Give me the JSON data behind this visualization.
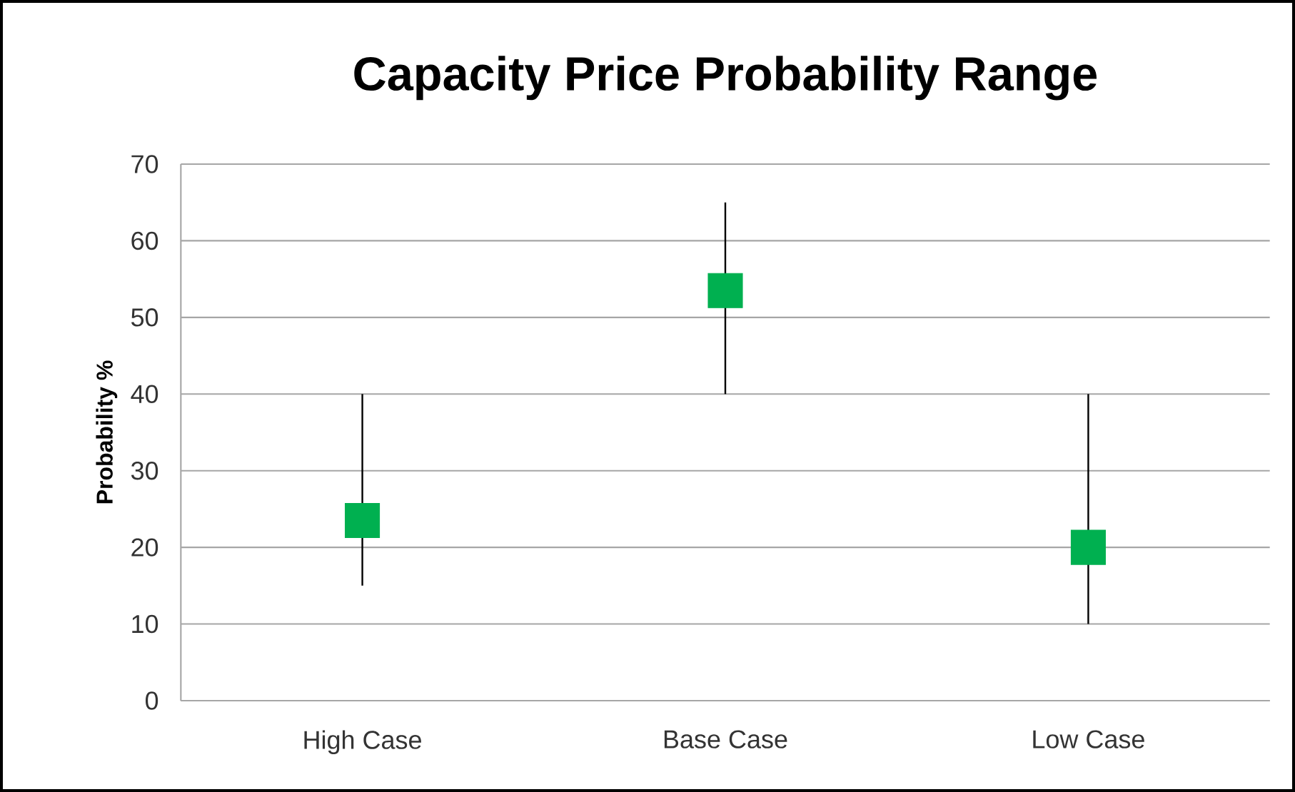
{
  "chart_data": {
    "type": "scatter",
    "title": "Capacity Price Probability Range",
    "ylabel": "Probability %",
    "categories": [
      "High Case",
      "Base Case",
      "Low Case"
    ],
    "values": [
      23.5,
      53.5,
      20
    ],
    "errors": [
      [
        15,
        40
      ],
      [
        40,
        65
      ],
      [
        10,
        40
      ]
    ],
    "color": "#00b050",
    "marker": "square",
    "ylim": [
      0,
      70
    ],
    "yticks": [
      0,
      10,
      20,
      30,
      40,
      50,
      60,
      70
    ],
    "grid": "y"
  }
}
